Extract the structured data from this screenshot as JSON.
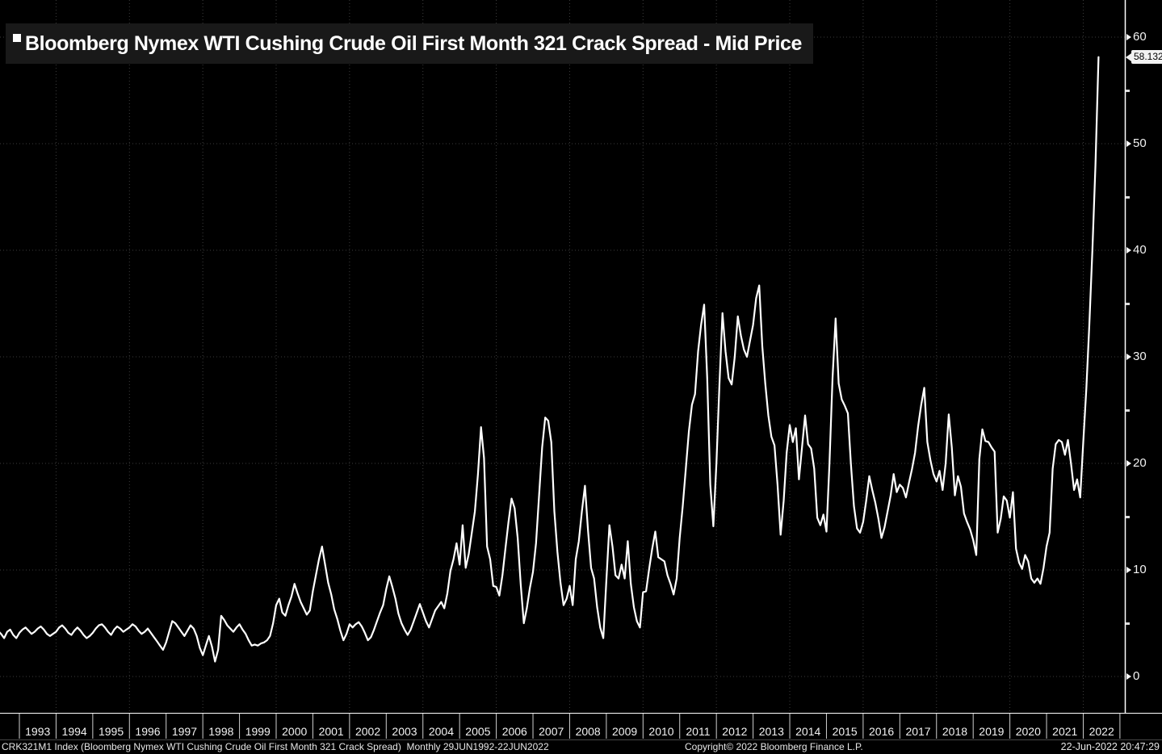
{
  "title": {
    "bullet": "■",
    "text": "Bloomberg Nymex WTI Cushing Crude Oil First Month 321 Crack Spread - Mid Price"
  },
  "y_axis": {
    "major_ticks": [
      60,
      50,
      40,
      30,
      20,
      10,
      0
    ],
    "minor_ticks": [
      55,
      45,
      35,
      25,
      15,
      5
    ],
    "last_price_label": "58.132"
  },
  "x_axis": {
    "years": [
      "1993",
      "1994",
      "1995",
      "1996",
      "1997",
      "1998",
      "1999",
      "2000",
      "2001",
      "2002",
      "2003",
      "2004",
      "2005",
      "2006",
      "2007",
      "2008",
      "2009",
      "2010",
      "2011",
      "2012",
      "2013",
      "2014",
      "2015",
      "2016",
      "2017",
      "2018",
      "2019",
      "2020",
      "2021",
      "2022"
    ]
  },
  "footer": {
    "left": "CRK321M1 Index (Bloomberg Nymex WTI Cushing Crude Oil First Month 321 Crack Spread)  Monthly 29JUN1992-22JUN2022",
    "center": "Copyright© 2022 Bloomberg Finance L.P.",
    "right": "22-Jun-2022 20:47:29"
  },
  "colors": {
    "background": "#000000",
    "line": "#ffffff",
    "grid": "#3d3d3d",
    "axis": "#ffffff",
    "separator": "#cfcfcf",
    "title_bar_bg": "#191919",
    "badge_bg": "#f2f2f2",
    "badge_text": "#000000"
  },
  "chart_data": {
    "type": "line",
    "series_name": "Bloomberg Nymex WTI Cushing Crude Oil First Month 321 Crack Spread - Mid Price",
    "ticker": "CRK321M1 Index",
    "frequency": "Monthly",
    "date_range": "29JUN1992-22JUN2022",
    "start": "1992-06",
    "end": "2022-06",
    "last_value": 58.132,
    "ylim_ticks": [
      0,
      60
    ],
    "y_gridline_step": 10,
    "x_gridlines_every_years": 2,
    "legend_position": "top-left",
    "values": [
      4.3,
      4.0,
      3.6,
      4.2,
      4.4,
      3.9,
      3.6,
      4.1,
      4.4,
      4.6,
      4.3,
      4.0,
      4.2,
      4.5,
      4.7,
      4.4,
      4.0,
      3.8,
      4.0,
      4.2,
      4.6,
      4.8,
      4.5,
      4.1,
      3.9,
      4.3,
      4.6,
      4.3,
      3.9,
      3.6,
      3.8,
      4.1,
      4.5,
      4.8,
      4.9,
      4.6,
      4.2,
      3.9,
      4.4,
      4.7,
      4.5,
      4.2,
      4.4,
      4.6,
      4.9,
      4.7,
      4.3,
      4.0,
      4.2,
      4.5,
      4.1,
      3.7,
      3.3,
      2.9,
      2.5,
      3.2,
      4.2,
      5.2,
      5.0,
      4.6,
      4.2,
      3.8,
      4.3,
      4.8,
      4.5,
      3.8,
      2.7,
      2.0,
      2.9,
      3.8,
      2.8,
      1.4,
      2.5,
      5.7,
      5.3,
      4.8,
      4.5,
      4.2,
      4.6,
      4.9,
      4.4,
      4.0,
      3.4,
      2.9,
      3.0,
      2.9,
      3.1,
      3.2,
      3.4,
      3.8,
      5.0,
      6.7,
      7.3,
      6.0,
      5.7,
      6.7,
      7.5,
      8.7,
      7.8,
      7.0,
      6.4,
      5.8,
      6.2,
      8.0,
      9.5,
      11.0,
      12.2,
      10.5,
      8.8,
      7.7,
      6.3,
      5.4,
      4.3,
      3.4,
      4.0,
      4.9,
      4.6,
      4.9,
      5.1,
      4.7,
      4.1,
      3.4,
      3.7,
      4.4,
      5.2,
      6.0,
      6.7,
      8.2,
      9.4,
      8.4,
      7.3,
      5.9,
      5.0,
      4.4,
      3.9,
      4.4,
      5.2,
      6.0,
      6.8,
      6.0,
      5.2,
      4.6,
      5.4,
      6.2,
      6.6,
      7.0,
      6.4,
      7.8,
      9.9,
      11.0,
      12.5,
      10.5,
      14.2,
      10.2,
      11.5,
      13.5,
      15.5,
      19.0,
      23.4,
      20.5,
      12.2,
      11.0,
      8.5,
      8.4,
      7.6,
      9.5,
      12.0,
      14.5,
      16.7,
      15.8,
      13.0,
      8.6,
      5.0,
      6.4,
      8.3,
      9.8,
      12.5,
      17.0,
      21.5,
      24.3,
      24.0,
      22.0,
      15.5,
      11.7,
      8.8,
      6.7,
      7.3,
      8.5,
      6.7,
      11.0,
      12.7,
      15.5,
      17.9,
      13.7,
      10.2,
      9.2,
      6.5,
      4.6,
      3.6,
      9.0,
      14.2,
      12.2,
      9.5,
      9.2,
      10.5,
      9.2,
      12.7,
      8.7,
      6.5,
      5.2,
      4.6,
      7.9,
      8.0,
      10.1,
      12.0,
      13.6,
      11.2,
      11.0,
      10.8,
      9.5,
      8.7,
      7.7,
      9.2,
      13.0,
      16.0,
      19.5,
      23.0,
      25.5,
      26.5,
      30.5,
      33.0,
      34.9,
      28.0,
      18.0,
      14.1,
      20.0,
      27.5,
      34.1,
      30.5,
      28.0,
      27.4,
      30.0,
      33.8,
      32.0,
      30.7,
      30.0,
      31.5,
      33.0,
      35.5,
      36.7,
      31.0,
      27.5,
      24.5,
      22.5,
      21.7,
      18.0,
      13.3,
      16.5,
      21.0,
      23.6,
      22.0,
      23.3,
      18.5,
      21.5,
      24.5,
      21.8,
      21.4,
      19.5,
      14.9,
      14.2,
      15.2,
      13.6,
      20.0,
      28.0,
      33.6,
      27.5,
      26.0,
      25.4,
      24.7,
      20.0,
      16.0,
      13.9,
      13.5,
      14.5,
      16.5,
      18.8,
      17.5,
      16.3,
      14.8,
      13.0,
      14.0,
      15.5,
      17.0,
      19.0,
      17.3,
      18.0,
      17.7,
      16.8,
      18.2,
      19.5,
      21.0,
      23.5,
      25.5,
      27.1,
      22.0,
      20.3,
      19.0,
      18.3,
      19.3,
      17.5,
      20.0,
      24.6,
      21.5,
      17.0,
      18.8,
      17.8,
      15.3,
      14.5,
      13.8,
      12.8,
      11.4,
      20.4,
      23.2,
      22.1,
      22.0,
      21.5,
      21.1,
      13.5,
      14.8,
      16.9,
      16.5,
      14.9,
      17.3,
      12.0,
      10.7,
      10.1,
      11.4,
      10.8,
      9.2,
      8.8,
      9.2,
      8.7,
      10.2,
      12.2,
      13.5,
      19.5,
      21.8,
      22.2,
      22.0,
      20.8,
      22.2,
      20.0,
      17.5,
      18.5,
      16.8,
      22.0,
      27.0,
      33.0,
      40.0,
      48.0,
      58.132
    ]
  }
}
